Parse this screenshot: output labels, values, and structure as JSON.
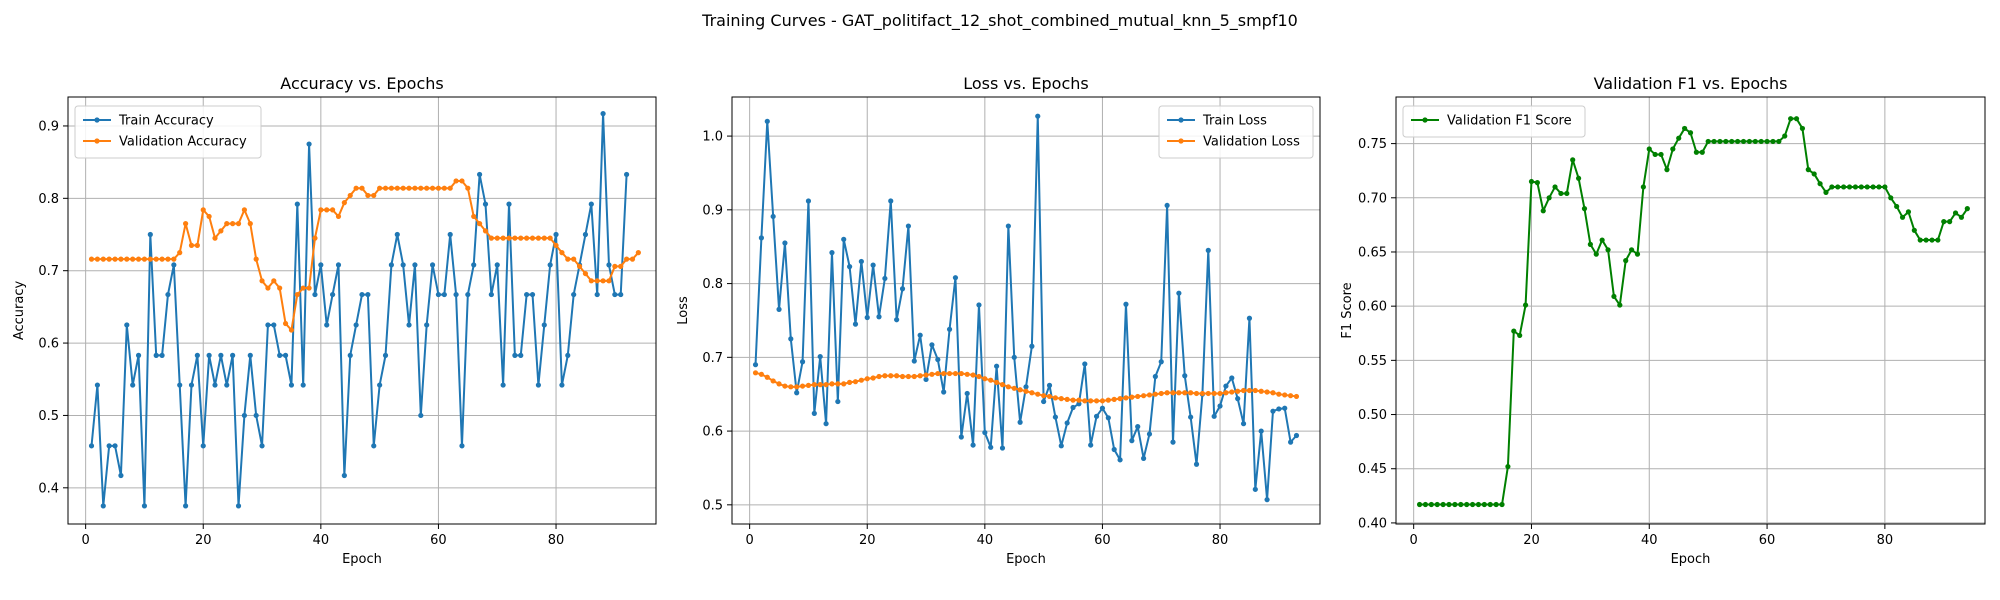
{
  "figure": {
    "suptitle": "Training Curves - GAT_politifact_12_shot_combined_mutual_knn_5_smpf10"
  },
  "colors": {
    "train": "#1f77b4",
    "validation": "#ff7f0e",
    "f1": "#008000"
  },
  "chart_data": [
    {
      "type": "line",
      "title": "Accuracy vs. Epochs",
      "xlabel": "Epoch",
      "ylabel": "Accuracy",
      "xlim": [
        -3,
        97
      ],
      "ylim": [
        0.35,
        0.94
      ],
      "xticks": [
        0,
        20,
        40,
        60,
        80
      ],
      "yticks": [
        0.4,
        0.5,
        0.6,
        0.7,
        0.8,
        0.9
      ],
      "ytick_decimals": 1,
      "grid": true,
      "legend": "top-left",
      "series": [
        {
          "name": "Train Accuracy",
          "color": "#1f77b4",
          "values": [
            0.458,
            0.542,
            0.375,
            0.458,
            0.458,
            0.417,
            0.625,
            0.542,
            0.583,
            0.375,
            0.75,
            0.583,
            0.583,
            0.667,
            0.708,
            0.542,
            0.375,
            0.542,
            0.583,
            0.458,
            0.583,
            0.542,
            0.583,
            0.542,
            0.583,
            0.375,
            0.5,
            0.583,
            0.5,
            0.458,
            0.625,
            0.625,
            0.583,
            0.583,
            0.542,
            0.792,
            0.542,
            0.875,
            0.667,
            0.708,
            0.625,
            0.667,
            0.708,
            0.417,
            0.583,
            0.625,
            0.667,
            0.667,
            0.458,
            0.542,
            0.583,
            0.708,
            0.75,
            0.708,
            0.625,
            0.708,
            0.5,
            0.625,
            0.708,
            0.667,
            0.667,
            0.75,
            0.667,
            0.458,
            0.667,
            0.708,
            0.833,
            0.792,
            0.667,
            0.708,
            0.542,
            0.792,
            0.583,
            0.583,
            0.667,
            0.667,
            0.542,
            0.625,
            0.708,
            0.75,
            0.542,
            0.583,
            0.667,
            0.708,
            0.75,
            0.792,
            0.667,
            0.917,
            0.708,
            0.667,
            0.667,
            0.833
          ]
        },
        {
          "name": "Validation Accuracy",
          "color": "#ff7f0e",
          "values": [
            0.716,
            0.716,
            0.716,
            0.716,
            0.716,
            0.716,
            0.716,
            0.716,
            0.716,
            0.716,
            0.716,
            0.716,
            0.716,
            0.716,
            0.716,
            0.725,
            0.765,
            0.735,
            0.735,
            0.784,
            0.775,
            0.745,
            0.755,
            0.765,
            0.765,
            0.765,
            0.784,
            0.765,
            0.716,
            0.686,
            0.676,
            0.686,
            0.676,
            0.627,
            0.618,
            0.667,
            0.676,
            0.676,
            0.745,
            0.784,
            0.784,
            0.784,
            0.775,
            0.794,
            0.804,
            0.814,
            0.814,
            0.804,
            0.804,
            0.814,
            0.814,
            0.814,
            0.814,
            0.814,
            0.814,
            0.814,
            0.814,
            0.814,
            0.814,
            0.814,
            0.814,
            0.814,
            0.824,
            0.824,
            0.814,
            0.775,
            0.765,
            0.755,
            0.745,
            0.745,
            0.745,
            0.745,
            0.745,
            0.745,
            0.745,
            0.745,
            0.745,
            0.745,
            0.745,
            0.735,
            0.725,
            0.716,
            0.716,
            0.706,
            0.696,
            0.686,
            0.686,
            0.686,
            0.686,
            0.706,
            0.706,
            0.716,
            0.716,
            0.725
          ]
        }
      ]
    },
    {
      "type": "line",
      "title": "Loss vs. Epochs",
      "xlabel": "Epoch",
      "ylabel": "Loss",
      "xlim": [
        -3,
        97
      ],
      "ylim": [
        0.474,
        1.053
      ],
      "xticks": [
        0,
        20,
        40,
        60,
        80
      ],
      "yticks": [
        0.5,
        0.6,
        0.7,
        0.8,
        0.9,
        1.0
      ],
      "ytick_decimals": 1,
      "grid": true,
      "legend": "top-right",
      "series": [
        {
          "name": "Train Loss",
          "color": "#1f77b4",
          "values": [
            0.69,
            0.862,
            1.02,
            0.891,
            0.765,
            0.855,
            0.725,
            0.652,
            0.694,
            0.912,
            0.624,
            0.701,
            0.61,
            0.842,
            0.64,
            0.86,
            0.823,
            0.745,
            0.83,
            0.754,
            0.825,
            0.755,
            0.807,
            0.912,
            0.751,
            0.793,
            0.878,
            0.695,
            0.73,
            0.67,
            0.717,
            0.697,
            0.653,
            0.738,
            0.808,
            0.592,
            0.651,
            0.581,
            0.771,
            0.598,
            0.578,
            0.688,
            0.577,
            0.878,
            0.7,
            0.612,
            0.66,
            0.715,
            1.027,
            0.64,
            0.662,
            0.619,
            0.58,
            0.611,
            0.632,
            0.637,
            0.691,
            0.581,
            0.62,
            0.631,
            0.618,
            0.575,
            0.561,
            0.772,
            0.587,
            0.606,
            0.563,
            0.596,
            0.674,
            0.694,
            0.906,
            0.585,
            0.787,
            0.675,
            0.619,
            0.555,
            0.65,
            0.845,
            0.62,
            0.634,
            0.661,
            0.672,
            0.644,
            0.61,
            0.753,
            0.521,
            0.6,
            0.507,
            0.627,
            0.63,
            0.631,
            0.585,
            0.594
          ]
        },
        {
          "name": "Validation Loss",
          "color": "#ff7f0e",
          "values": [
            0.679,
            0.677,
            0.673,
            0.668,
            0.664,
            0.661,
            0.66,
            0.66,
            0.661,
            0.662,
            0.663,
            0.663,
            0.663,
            0.664,
            0.664,
            0.664,
            0.666,
            0.667,
            0.669,
            0.671,
            0.672,
            0.674,
            0.675,
            0.675,
            0.675,
            0.674,
            0.674,
            0.674,
            0.675,
            0.676,
            0.677,
            0.678,
            0.678,
            0.678,
            0.678,
            0.678,
            0.677,
            0.676,
            0.674,
            0.671,
            0.669,
            0.666,
            0.663,
            0.66,
            0.658,
            0.656,
            0.654,
            0.652,
            0.65,
            0.648,
            0.647,
            0.645,
            0.644,
            0.643,
            0.642,
            0.642,
            0.641,
            0.641,
            0.641,
            0.641,
            0.642,
            0.643,
            0.644,
            0.645,
            0.646,
            0.647,
            0.648,
            0.649,
            0.65,
            0.651,
            0.652,
            0.652,
            0.652,
            0.652,
            0.652,
            0.651,
            0.651,
            0.651,
            0.651,
            0.651,
            0.652,
            0.653,
            0.654,
            0.655,
            0.655,
            0.655,
            0.654,
            0.653,
            0.652,
            0.65,
            0.649,
            0.648,
            0.647
          ]
        }
      ]
    },
    {
      "type": "line",
      "title": "Validation F1 vs. Epochs",
      "xlabel": "Epoch",
      "ylabel": "F1 Score",
      "xlim": [
        -3,
        97
      ],
      "ylim": [
        0.399,
        0.793
      ],
      "xticks": [
        0,
        20,
        40,
        60,
        80
      ],
      "yticks": [
        0.4,
        0.45,
        0.5,
        0.55,
        0.6,
        0.65,
        0.7,
        0.75
      ],
      "ytick_decimals": 2,
      "grid": true,
      "legend": "top-left",
      "series": [
        {
          "name": "Validation F1 Score",
          "color": "#008000",
          "values": [
            0.417,
            0.417,
            0.417,
            0.417,
            0.417,
            0.417,
            0.417,
            0.417,
            0.417,
            0.417,
            0.417,
            0.417,
            0.417,
            0.417,
            0.417,
            0.452,
            0.577,
            0.573,
            0.601,
            0.715,
            0.714,
            0.688,
            0.7,
            0.71,
            0.704,
            0.704,
            0.735,
            0.718,
            0.69,
            0.657,
            0.648,
            0.661,
            0.652,
            0.609,
            0.601,
            0.642,
            0.652,
            0.648,
            0.71,
            0.745,
            0.74,
            0.74,
            0.726,
            0.745,
            0.755,
            0.764,
            0.76,
            0.742,
            0.742,
            0.752,
            0.752,
            0.752,
            0.752,
            0.752,
            0.752,
            0.752,
            0.752,
            0.752,
            0.752,
            0.752,
            0.752,
            0.752,
            0.757,
            0.773,
            0.773,
            0.764,
            0.726,
            0.722,
            0.713,
            0.705,
            0.71,
            0.71,
            0.71,
            0.71,
            0.71,
            0.71,
            0.71,
            0.71,
            0.71,
            0.71,
            0.7,
            0.692,
            0.682,
            0.687,
            0.67,
            0.661,
            0.661,
            0.661,
            0.661,
            0.678,
            0.678,
            0.686,
            0.682,
            0.69
          ]
        }
      ]
    }
  ]
}
